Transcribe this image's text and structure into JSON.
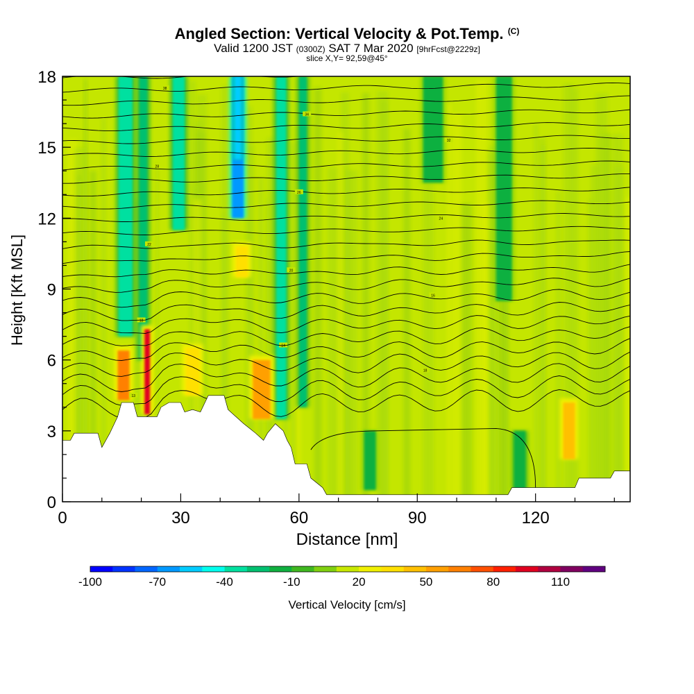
{
  "title": {
    "main": "Angled Section: Vertical Velocity & Pot.Temp.",
    "copyright": "(C)",
    "valid_prefix": "Valid 1200 JST",
    "valid_zulu": "(0300Z)",
    "valid_date": "SAT 7 Mar 2020",
    "forecast": "[9hrFcst@2229z]",
    "slice": "slice X,Y= 92,59@45°"
  },
  "chart_data": {
    "type": "heatmap",
    "xlabel": "Distance [nm]",
    "ylabel": "Height [Kft MSL]",
    "xlim": [
      0,
      144
    ],
    "ylim": [
      0,
      18
    ],
    "x_ticks": [
      0,
      30,
      60,
      90,
      120
    ],
    "y_ticks": [
      0,
      3,
      6,
      9,
      12,
      15,
      18
    ],
    "colorbar": {
      "label": "Vertical Velocity [cm/s]",
      "tick_labels": [
        -100,
        -70,
        -40,
        -10,
        20,
        50,
        80,
        110
      ],
      "min": -100,
      "max": 120,
      "step": 10,
      "colors": [
        "#0000ff",
        "#0033ff",
        "#0066ff",
        "#0099ff",
        "#00ccff",
        "#00ffee",
        "#00e0a0",
        "#00c070",
        "#10b040",
        "#40b820",
        "#80d010",
        "#c8e800",
        "#f0f000",
        "#ffe000",
        "#ffc000",
        "#ffa000",
        "#ff8000",
        "#ff5000",
        "#ff2000",
        "#e00020",
        "#b00040",
        "#800060",
        "#600080"
      ]
    },
    "terrain": [
      [
        0,
        2.6
      ],
      [
        2,
        2.6
      ],
      [
        3,
        2.9
      ],
      [
        9,
        2.9
      ],
      [
        10,
        2.3
      ],
      [
        11,
        2.6
      ],
      [
        12,
        2.9
      ],
      [
        14,
        3.6
      ],
      [
        15,
        4.2
      ],
      [
        18,
        4.2
      ],
      [
        19,
        3.6
      ],
      [
        24,
        3.6
      ],
      [
        25,
        4.0
      ],
      [
        27,
        4.2
      ],
      [
        30,
        4.2
      ],
      [
        31,
        3.8
      ],
      [
        33,
        3.9
      ],
      [
        35,
        3.8
      ],
      [
        37,
        4.5
      ],
      [
        41,
        4.5
      ],
      [
        42,
        3.9
      ],
      [
        44,
        3.6
      ],
      [
        46,
        3.3
      ],
      [
        49,
        2.9
      ],
      [
        51,
        2.6
      ],
      [
        52,
        2.9
      ],
      [
        54,
        3.3
      ],
      [
        56,
        3.0
      ],
      [
        57,
        2.6
      ],
      [
        58,
        2.3
      ],
      [
        59,
        1.6
      ],
      [
        62,
        1.6
      ],
      [
        63,
        1.0
      ],
      [
        66,
        0.6
      ],
      [
        67,
        0.3
      ],
      [
        113,
        0.3
      ],
      [
        114,
        0.6
      ],
      [
        120,
        0.6
      ],
      [
        130,
        0.6
      ],
      [
        131,
        1.0
      ],
      [
        139,
        1.0
      ],
      [
        140,
        1.3
      ],
      [
        144,
        1.3
      ]
    ],
    "updraft_cores": [
      {
        "x": 15.5,
        "y_bottom": 4.3,
        "y_top": 6.4,
        "w": 3.0,
        "value": 60
      },
      {
        "x": 21.5,
        "y_bottom": 3.7,
        "y_top": 7.3,
        "w": 1.4,
        "value": 90
      },
      {
        "x": 33.0,
        "y_bottom": 4.5,
        "y_top": 6.5,
        "w": 3.5,
        "value": 25
      },
      {
        "x": 50.5,
        "y_bottom": 3.5,
        "y_top": 6.0,
        "w": 4.5,
        "value": 45
      },
      {
        "x": 45.5,
        "y_bottom": 9.5,
        "y_top": 10.8,
        "w": 3.0,
        "value": 25
      },
      {
        "x": 128.5,
        "y_bottom": 1.8,
        "y_top": 4.2,
        "w": 3.0,
        "value": 40
      }
    ],
    "downdraft_bands": [
      {
        "x": 16.0,
        "y_bottom": 7.0,
        "y_top": 18.0,
        "w": 3.5,
        "value": -40
      },
      {
        "x": 20.5,
        "y_bottom": 6.0,
        "y_top": 18.0,
        "w": 2.0,
        "value": -35
      },
      {
        "x": 29.5,
        "y_bottom": 11.5,
        "y_top": 18.0,
        "w": 3.0,
        "value": -40
      },
      {
        "x": 44.5,
        "y_bottom": 12.0,
        "y_top": 18.0,
        "w": 3.0,
        "value": -70
      },
      {
        "x": 44.5,
        "y_bottom": 14.5,
        "y_top": 18.0,
        "w": 1.5,
        "value": -60
      },
      {
        "x": 55.5,
        "y_bottom": 3.5,
        "y_top": 18.0,
        "w": 2.5,
        "value": -40
      },
      {
        "x": 61.0,
        "y_bottom": 4.0,
        "y_top": 18.0,
        "w": 2.0,
        "value": -30
      },
      {
        "x": 94.0,
        "y_bottom": 13.5,
        "y_top": 18.0,
        "w": 5.0,
        "value": -20
      },
      {
        "x": 112.0,
        "y_bottom": 8.5,
        "y_top": 18.0,
        "w": 4.0,
        "value": -20
      },
      {
        "x": 116.0,
        "y_bottom": 0.5,
        "y_top": 3.0,
        "w": 3.0,
        "value": -25
      },
      {
        "x": 78.0,
        "y_bottom": 0.5,
        "y_top": 3.0,
        "w": 3.0,
        "value": -20
      }
    ],
    "isentropes": {
      "count": 28,
      "labels": [
        "13",
        "18",
        "14",
        "18",
        "16",
        "20",
        "22",
        "24",
        "26",
        "28",
        "32",
        "34",
        "38",
        "44",
        "50",
        "56",
        "62",
        "66",
        "72",
        "78"
      ]
    }
  }
}
